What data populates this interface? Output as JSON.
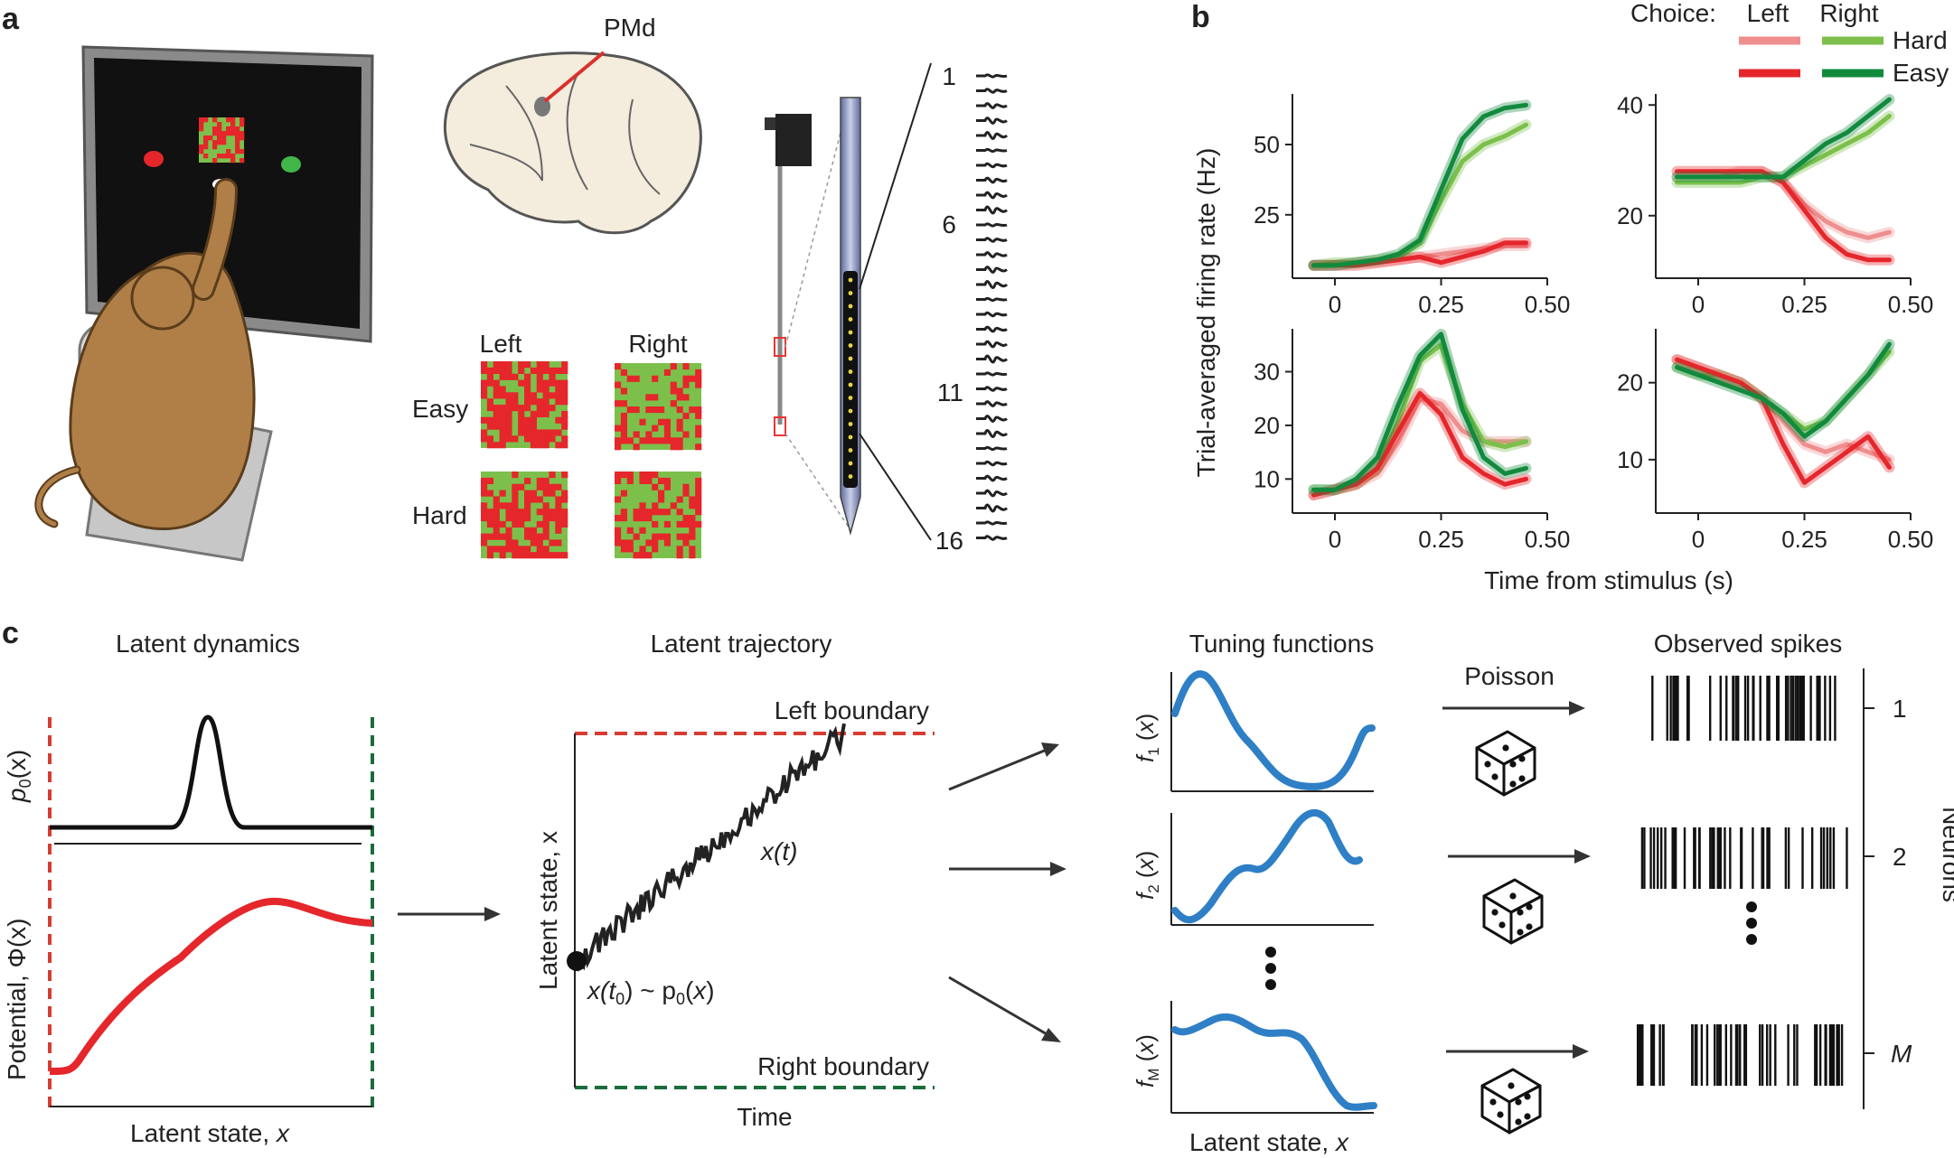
{
  "panel_labels": {
    "a": "a",
    "b": "b",
    "c": "c"
  },
  "panel_a": {
    "pmd_label": "PMd",
    "stimulus_columns": [
      "Left",
      "Right"
    ],
    "stimulus_rows": [
      "Easy",
      "Hard"
    ],
    "channel_labels": [
      "1",
      "6",
      "11",
      "16"
    ],
    "colors": {
      "red": "#e5262b",
      "green": "#7cc04b"
    }
  },
  "panel_b": {
    "legend_title": "Choice:",
    "legend_cols": [
      "Left",
      "Right"
    ],
    "legend_rows": [
      "Hard",
      "Easy"
    ],
    "ylabel": "Trial-averaged firing rate (Hz)",
    "xlabel": "Time from stimulus (s)",
    "colors": {
      "left_hard": "#ef8e8e",
      "left_easy": "#e5262b",
      "right_hard": "#7cc04b",
      "right_easy": "#128a3e"
    }
  },
  "chart_data": [
    {
      "type": "line",
      "x": [
        -0.05,
        0,
        0.05,
        0.1,
        0.15,
        0.2,
        0.25,
        0.3,
        0.35,
        0.4,
        0.45
      ],
      "xticks": [
        "0",
        "0.25",
        "0.50"
      ],
      "yticks": [
        "25",
        "50"
      ],
      "xlim": [
        -0.1,
        0.5
      ],
      "ylim": [
        5,
        68
      ],
      "series": [
        {
          "name": "Left Hard",
          "values": [
            7,
            7,
            8,
            8,
            9,
            10,
            11,
            12,
            13,
            14,
            14
          ]
        },
        {
          "name": "Left Easy",
          "values": [
            7,
            7,
            7,
            8,
            9,
            10,
            8,
            10,
            12,
            15,
            15
          ]
        },
        {
          "name": "Right Hard",
          "values": [
            7,
            8,
            8,
            9,
            10,
            15,
            30,
            44,
            50,
            53,
            57
          ]
        },
        {
          "name": "Right Easy",
          "values": [
            7,
            7,
            8,
            9,
            11,
            16,
            34,
            52,
            60,
            63,
            64
          ]
        }
      ]
    },
    {
      "type": "line",
      "x": [
        -0.05,
        0,
        0.05,
        0.1,
        0.15,
        0.2,
        0.25,
        0.3,
        0.35,
        0.4,
        0.45
      ],
      "xticks": [
        "0",
        "0.25",
        "0.50"
      ],
      "yticks": [
        "20",
        "40"
      ],
      "xlim": [
        -0.1,
        0.5
      ],
      "ylim": [
        10,
        42
      ],
      "series": [
        {
          "name": "Left Hard",
          "values": [
            27,
            27,
            27,
            28,
            28,
            26,
            22,
            19,
            17,
            16,
            17
          ]
        },
        {
          "name": "Left Easy",
          "values": [
            28,
            28,
            28,
            28,
            28,
            26,
            21,
            16,
            13,
            12,
            12
          ]
        },
        {
          "name": "Right Hard",
          "values": [
            26,
            26,
            26,
            26,
            27,
            27,
            29,
            31,
            33,
            35,
            38
          ]
        },
        {
          "name": "Right Easy",
          "values": [
            27,
            27,
            27,
            27,
            27,
            27,
            30,
            33,
            35,
            38,
            41
          ]
        }
      ]
    },
    {
      "type": "line",
      "x": [
        -0.05,
        0,
        0.05,
        0.1,
        0.15,
        0.2,
        0.25,
        0.3,
        0.35,
        0.4,
        0.45
      ],
      "xticks": [
        "0",
        "0.25",
        "0.50"
      ],
      "yticks": [
        "10",
        "20",
        "30"
      ],
      "xlim": [
        -0.1,
        0.5
      ],
      "ylim": [
        5,
        38
      ],
      "series": [
        {
          "name": "Left Hard",
          "values": [
            7,
            8,
            9,
            11,
            17,
            25,
            24,
            19,
            17,
            17,
            17
          ]
        },
        {
          "name": "Left Easy",
          "values": [
            7,
            8,
            9,
            12,
            19,
            26,
            22,
            14,
            11,
            9,
            10
          ]
        },
        {
          "name": "Right Hard",
          "values": [
            8,
            8,
            9,
            12,
            21,
            32,
            35,
            24,
            17,
            16,
            17
          ]
        },
        {
          "name": "Right Easy",
          "values": [
            8,
            8,
            10,
            14,
            24,
            33,
            37,
            23,
            14,
            11,
            12
          ]
        }
      ]
    },
    {
      "type": "line",
      "x": [
        -0.05,
        0,
        0.05,
        0.1,
        0.15,
        0.2,
        0.25,
        0.3,
        0.35,
        0.4,
        0.45
      ],
      "xticks": [
        "0",
        "0.25",
        "0.50"
      ],
      "yticks": [
        "10",
        "20"
      ],
      "xlim": [
        -0.1,
        0.5
      ],
      "ylim": [
        4,
        27
      ],
      "series": [
        {
          "name": "Left Hard",
          "values": [
            23,
            22,
            21,
            20,
            18,
            15,
            12,
            11,
            12,
            11,
            10
          ]
        },
        {
          "name": "Left Easy",
          "values": [
            23,
            22,
            21,
            20,
            18,
            12,
            7,
            9,
            11,
            13,
            9
          ]
        },
        {
          "name": "Right Hard",
          "values": [
            22,
            21,
            21,
            20,
            18,
            16,
            14,
            15,
            18,
            21,
            24
          ]
        },
        {
          "name": "Right Easy",
          "values": [
            22,
            21,
            20,
            19,
            18,
            16,
            13,
            15,
            18,
            21,
            25
          ]
        }
      ]
    }
  ],
  "panel_c": {
    "latent_dynamics_title": "Latent dynamics",
    "p0_label": "p",
    "p0_sub": "0",
    "p0_arg": "(x)",
    "potential_label": "Potential, Φ(x)",
    "latent_state_label": "Latent state, ",
    "x_var": "x",
    "trajectory_title": "Latent trajectory",
    "left_boundary": "Left boundary",
    "right_boundary": "Right boundary",
    "time_label": "Time",
    "traj_ylabel": "Latent state, x",
    "xt_label": "x(t)",
    "x0_label": "x(t",
    "x0_rest": ") ~ p",
    "tuning_title": "Tuning functions",
    "tuning_ylabels": [
      "f1 (x)",
      "f2 (x)",
      "fM (x)"
    ],
    "tuning_xlabel": "Latent state, ",
    "poisson_label": "Poisson",
    "spikes_title": "Observed spikes",
    "neuron_labels": [
      "1",
      "2",
      "M"
    ],
    "neurons_axis": "Neurons",
    "colors": {
      "tuning": "#2e7fc5",
      "potential": "#e5262b",
      "left_boundary": "#d63c30",
      "right_boundary": "#1a6d3b"
    }
  }
}
